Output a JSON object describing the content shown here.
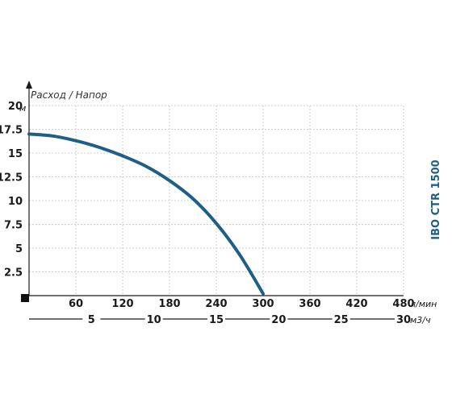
{
  "chart_data": {
    "type": "line",
    "title": "",
    "ylabel": "Расход / Напор",
    "y_unit": "м",
    "x_unit": "л/мин",
    "x2_unit": "м3/ч",
    "model_label": "IBO CTR 1500",
    "y_ticks": [
      "20",
      "17.5",
      "15",
      "12.5",
      "10",
      "7.5",
      "5",
      "2.5"
    ],
    "x_ticks": [
      "60",
      "120",
      "180",
      "240",
      "300",
      "360",
      "420",
      "480"
    ],
    "x2_ticks": [
      "5",
      "10",
      "15",
      "20",
      "25",
      "30"
    ],
    "xlim": [
      0,
      480
    ],
    "ylim": [
      0,
      20
    ],
    "x2lim": [
      0,
      30
    ],
    "grid": true,
    "series": [
      {
        "color": "#1f5f86",
        "x": [
          0,
          30,
          60,
          90,
          120,
          150,
          180,
          210,
          240,
          270,
          300
        ],
        "y": [
          17.0,
          16.8,
          16.3,
          15.6,
          14.7,
          13.6,
          12.1,
          10.2,
          7.6,
          4.3,
          0.2
        ]
      }
    ]
  }
}
